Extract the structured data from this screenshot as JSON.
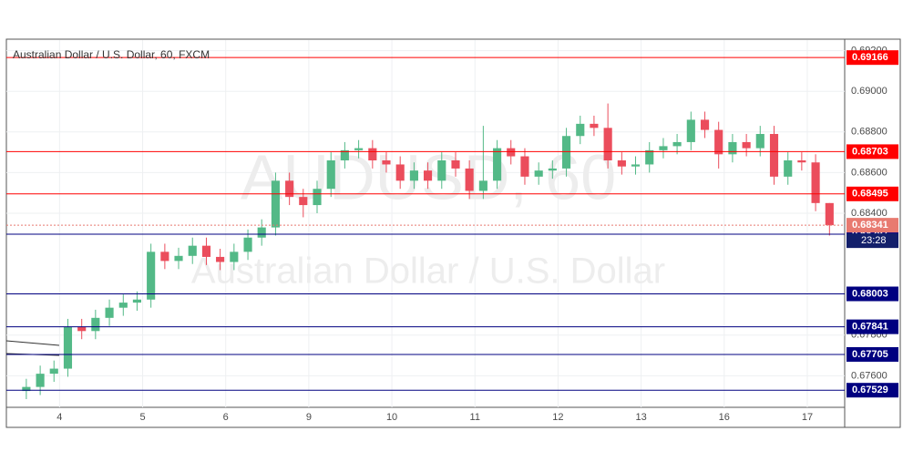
{
  "chart_data": {
    "type": "candlestick",
    "title": "Australian Dollar / U.S. Dollar, 60, FXCM",
    "watermark": "AUDUSD, 60",
    "watermark_subtitle": "Australian Dollar / U.S. Dollar",
    "xlim": [
      0.36,
      10.45
    ],
    "xticks": [
      {
        "value": 1,
        "label": "4"
      },
      {
        "value": 2,
        "label": "5"
      },
      {
        "value": 3,
        "label": "6"
      },
      {
        "value": 4,
        "label": "9"
      },
      {
        "value": 5,
        "label": "10"
      },
      {
        "value": 6,
        "label": "11"
      },
      {
        "value": 7,
        "label": "12"
      },
      {
        "value": 8,
        "label": "13"
      },
      {
        "value": 9,
        "label": "16"
      },
      {
        "value": 10,
        "label": "17"
      }
    ],
    "ylim": [
      0.67346,
      0.69252
    ],
    "yticks": [
      {
        "value": 0.692,
        "label": "0.69200"
      },
      {
        "value": 0.69,
        "label": "0.69000"
      },
      {
        "value": 0.688,
        "label": "0.68800"
      },
      {
        "value": 0.686,
        "label": "0.68600"
      },
      {
        "value": 0.684,
        "label": "0.68400"
      },
      {
        "value": 0.678,
        "label": "0.67800"
      },
      {
        "value": 0.676,
        "label": "0.67600"
      }
    ],
    "grid": true,
    "up_color": "#53b987",
    "down_color": "#eb4d5c",
    "x": [
      0.6,
      0.767,
      0.933,
      1.1,
      1.267,
      1.433,
      1.6,
      1.767,
      1.933,
      2.1,
      2.267,
      2.433,
      2.6,
      2.767,
      2.933,
      3.1,
      3.267,
      3.433,
      3.6,
      3.767,
      3.933,
      4.1,
      4.267,
      4.433,
      4.6,
      4.767,
      4.933,
      5.1,
      5.267,
      5.433,
      5.6,
      5.767,
      5.933,
      6.1,
      6.267,
      6.433,
      6.6,
      6.767,
      6.933,
      7.1,
      7.267,
      7.433,
      7.6,
      7.767,
      7.933,
      8.1,
      8.267,
      8.433,
      8.6,
      8.767,
      8.933,
      9.1,
      9.267,
      9.433,
      9.6,
      9.767,
      9.933,
      10.1,
      10.267
    ],
    "open": [
      0.67525,
      0.67545,
      0.6761,
      0.67635,
      0.6784,
      0.6782,
      0.67885,
      0.67935,
      0.6796,
      0.67975,
      0.6821,
      0.68165,
      0.6819,
      0.6824,
      0.68185,
      0.6816,
      0.6821,
      0.6828,
      0.6833,
      0.6856,
      0.6848,
      0.6844,
      0.6852,
      0.6866,
      0.6871,
      0.6872,
      0.6866,
      0.6864,
      0.6856,
      0.6861,
      0.6856,
      0.6866,
      0.6862,
      0.6851,
      0.6856,
      0.6872,
      0.6868,
      0.6858,
      0.6861,
      0.6862,
      0.6878,
      0.6884,
      0.6882,
      0.6866,
      0.6863,
      0.6864,
      0.6871,
      0.6873,
      0.6875,
      0.6886,
      0.6881,
      0.6869,
      0.6875,
      0.6872,
      0.6879,
      0.6858,
      0.6866,
      0.6865,
      0.6845
    ],
    "high": [
      0.67585,
      0.6765,
      0.67675,
      0.6788,
      0.6788,
      0.67925,
      0.67975,
      0.68,
      0.68015,
      0.6825,
      0.6825,
      0.6823,
      0.6828,
      0.6828,
      0.68225,
      0.6825,
      0.6832,
      0.6837,
      0.686,
      0.686,
      0.6852,
      0.6856,
      0.687,
      0.6875,
      0.6876,
      0.6876,
      0.687,
      0.6868,
      0.6865,
      0.6865,
      0.687,
      0.687,
      0.6866,
      0.6883,
      0.6876,
      0.6876,
      0.6872,
      0.6865,
      0.6866,
      0.6882,
      0.6888,
      0.6888,
      0.6894,
      0.687,
      0.6868,
      0.6875,
      0.6877,
      0.6879,
      0.689,
      0.689,
      0.6885,
      0.6879,
      0.6879,
      0.6883,
      0.6883,
      0.687,
      0.687,
      0.6869,
      0.6845
    ],
    "low": [
      0.67485,
      0.67505,
      0.6757,
      0.67595,
      0.6778,
      0.6778,
      0.67845,
      0.67895,
      0.6792,
      0.67935,
      0.68125,
      0.68125,
      0.6815,
      0.68145,
      0.6812,
      0.6812,
      0.6817,
      0.6824,
      0.6829,
      0.6844,
      0.6838,
      0.684,
      0.6848,
      0.6862,
      0.6867,
      0.6862,
      0.686,
      0.6852,
      0.6852,
      0.6852,
      0.6852,
      0.6858,
      0.6847,
      0.6847,
      0.6852,
      0.6864,
      0.6854,
      0.6854,
      0.6857,
      0.6858,
      0.6874,
      0.6878,
      0.6862,
      0.6859,
      0.6859,
      0.686,
      0.6867,
      0.6869,
      0.6871,
      0.6877,
      0.6862,
      0.6865,
      0.6868,
      0.6868,
      0.6854,
      0.6854,
      0.6861,
      0.6841,
      0.6829
    ],
    "close": [
      0.67545,
      0.6761,
      0.67635,
      0.6784,
      0.6782,
      0.67885,
      0.67935,
      0.6796,
      0.67975,
      0.6821,
      0.68165,
      0.6819,
      0.6824,
      0.68185,
      0.6816,
      0.6821,
      0.6828,
      0.6833,
      0.6856,
      0.6848,
      0.6844,
      0.6852,
      0.6866,
      0.6871,
      0.6872,
      0.6866,
      0.6864,
      0.6856,
      0.6861,
      0.6856,
      0.6866,
      0.6862,
      0.6851,
      0.6856,
      0.6872,
      0.6868,
      0.6858,
      0.6861,
      0.6862,
      0.6878,
      0.6884,
      0.6882,
      0.6866,
      0.6863,
      0.6864,
      0.6871,
      0.6873,
      0.6875,
      0.6886,
      0.6881,
      0.6869,
      0.6875,
      0.6872,
      0.6879,
      0.6858,
      0.6866,
      0.6865,
      0.6845,
      0.68341
    ],
    "levels": [
      {
        "value": 0.69166,
        "color": "#ff0000"
      },
      {
        "value": 0.68703,
        "color": "#ff0000"
      },
      {
        "value": 0.68495,
        "color": "#ff0000"
      },
      {
        "value": 0.68297,
        "color": "#000080"
      },
      {
        "value": 0.68003,
        "color": "#000080"
      },
      {
        "value": 0.67841,
        "color": "#000080"
      },
      {
        "value": 0.67705,
        "color": "#000080"
      },
      {
        "value": 0.67529,
        "color": "#000080"
      }
    ],
    "current_price": 0.68341,
    "current_color": "#e87a70",
    "countdown": "23:28"
  }
}
